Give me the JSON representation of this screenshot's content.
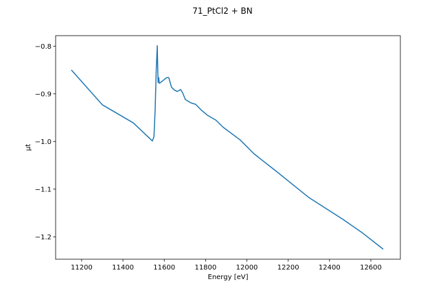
{
  "chart_data": {
    "type": "line",
    "title": "71_PtCl2 + BN",
    "xlabel": "Energy [eV]",
    "ylabel": "μt",
    "xlim": [
      11074,
      12743
    ],
    "ylim": [
      -1.247,
      -0.778
    ],
    "xticks": [
      11200,
      11400,
      11600,
      11800,
      12000,
      12200,
      12400,
      12600
    ],
    "xtick_labels": [
      "11200",
      "11400",
      "11600",
      "11800",
      "12000",
      "12200",
      "12400",
      "12600"
    ],
    "yticks": [
      -0.8,
      -0.9,
      -1.0,
      -1.1,
      -1.2
    ],
    "ytick_labels": [
      "−0.8",
      "−0.9",
      "−1.0",
      "−1.1",
      "−1.2"
    ],
    "grid": false,
    "series": [
      {
        "name": "71_PtCl2 + BN",
        "color": "#1f77b4",
        "x": [
          11150,
          11300,
          11450,
          11530,
          11542,
          11550,
          11556,
          11561,
          11566,
          11568,
          11570,
          11573,
          11576,
          11583,
          11600,
          11612,
          11622,
          11635,
          11649,
          11662,
          11672,
          11679,
          11689,
          11702,
          11729,
          11752,
          11779,
          11809,
          11849,
          11885,
          11968,
          12035,
          12135,
          12301,
          12467,
          12560,
          12660
        ],
        "y": [
          -0.85,
          -0.923,
          -0.961,
          -0.994,
          -0.999,
          -0.99,
          -0.93,
          -0.85,
          -0.799,
          -0.84,
          -0.876,
          -0.866,
          -0.878,
          -0.876,
          -0.87,
          -0.866,
          -0.866,
          -0.886,
          -0.892,
          -0.895,
          -0.893,
          -0.891,
          -0.898,
          -0.912,
          -0.919,
          -0.922,
          -0.934,
          -0.945,
          -0.955,
          -0.97,
          -0.997,
          -1.026,
          -1.06,
          -1.118,
          -1.164,
          -1.192,
          -1.226
        ]
      }
    ]
  }
}
